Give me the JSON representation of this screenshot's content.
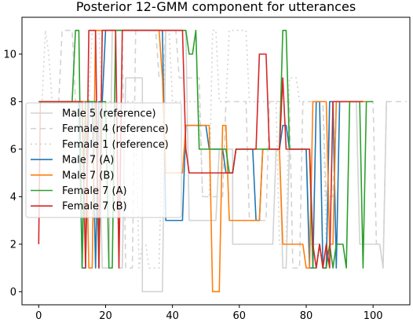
{
  "chart_data": {
    "type": "line",
    "title": "Posterior 12-GMM component for utterances",
    "xlabel": "",
    "ylabel": "",
    "xlim": [
      -5,
      111
    ],
    "ylim": [
      -0.55,
      11.55
    ],
    "x_ticks": [
      0,
      20,
      40,
      60,
      80,
      100
    ],
    "y_ticks": [
      0,
      2,
      4,
      6,
      8,
      10
    ],
    "grid": false,
    "legend_position": "center-left",
    "series": [
      {
        "name": "Male 5 (reference)",
        "color": "#d3d3d3",
        "dash": "solid",
        "points": [
          [
            0,
            8
          ],
          [
            12,
            8
          ],
          [
            13,
            1
          ],
          [
            14,
            1
          ],
          [
            15,
            8
          ],
          [
            18,
            8
          ],
          [
            19,
            1
          ],
          [
            21,
            1
          ],
          [
            22,
            11
          ],
          [
            23,
            11
          ],
          [
            24,
            1
          ],
          [
            25,
            1
          ],
          [
            26,
            9
          ],
          [
            31,
            9
          ],
          [
            31,
            0
          ],
          [
            37,
            0
          ],
          [
            38,
            11
          ],
          [
            44,
            11
          ],
          [
            45,
            3
          ],
          [
            53,
            3
          ],
          [
            54,
            6
          ],
          [
            58,
            6
          ],
          [
            58,
            2
          ],
          [
            70,
            2
          ],
          [
            71,
            6
          ],
          [
            72,
            6
          ],
          [
            73,
            1
          ],
          [
            74,
            1
          ],
          [
            75,
            6
          ],
          [
            80,
            6
          ],
          [
            81,
            2
          ],
          [
            84,
            2
          ],
          [
            85,
            1
          ],
          [
            86,
            1
          ],
          [
            87,
            8
          ],
          [
            95,
            8
          ],
          [
            96,
            2
          ],
          [
            102,
            2
          ],
          [
            103,
            1
          ],
          [
            104,
            8
          ],
          [
            105,
            8
          ]
        ]
      },
      {
        "name": "Female 4 (reference)",
        "color": "#d3d3d3",
        "dash": "7,5",
        "points": [
          [
            0,
            8
          ],
          [
            6,
            8
          ],
          [
            7,
            11
          ],
          [
            10,
            11
          ],
          [
            11,
            8
          ],
          [
            16,
            8
          ],
          [
            17,
            3
          ],
          [
            18,
            3
          ],
          [
            19,
            11
          ],
          [
            25,
            11
          ],
          [
            26,
            1
          ],
          [
            28,
            1
          ],
          [
            29,
            11
          ],
          [
            35,
            11
          ],
          [
            36,
            9
          ],
          [
            37,
            9
          ],
          [
            38,
            11
          ],
          [
            41,
            11
          ],
          [
            42,
            9
          ],
          [
            48,
            9
          ],
          [
            49,
            4
          ],
          [
            55,
            4
          ],
          [
            56,
            8
          ],
          [
            62,
            8
          ],
          [
            63,
            3
          ],
          [
            68,
            3
          ],
          [
            69,
            8
          ],
          [
            75,
            8
          ],
          [
            76,
            1
          ],
          [
            78,
            1
          ],
          [
            79,
            8
          ],
          [
            85,
            8
          ],
          [
            86,
            4
          ],
          [
            88,
            4
          ],
          [
            89,
            8
          ],
          [
            100,
            8
          ],
          [
            101,
            2
          ],
          [
            102,
            2
          ],
          [
            103,
            1
          ],
          [
            104,
            8
          ],
          [
            110,
            8
          ]
        ]
      },
      {
        "name": "Female 1 (reference)",
        "color": "#d3d3d3",
        "dash": "2,4",
        "points": [
          [
            0,
            8
          ],
          [
            1,
            8
          ],
          [
            2,
            11
          ],
          [
            3,
            10
          ],
          [
            4,
            8
          ],
          [
            15,
            8
          ],
          [
            16,
            11
          ],
          [
            18,
            11
          ],
          [
            19,
            8
          ],
          [
            23,
            8
          ],
          [
            24,
            1
          ],
          [
            25,
            1
          ],
          [
            26,
            8
          ],
          [
            29,
            8
          ],
          [
            30,
            1
          ],
          [
            31,
            2
          ],
          [
            32,
            2
          ],
          [
            33,
            1
          ],
          [
            36,
            1
          ],
          [
            37,
            7
          ],
          [
            38,
            11
          ],
          [
            39,
            11
          ],
          [
            40,
            8
          ],
          [
            48,
            8
          ],
          [
            49,
            4
          ],
          [
            51,
            4
          ],
          [
            52,
            11
          ],
          [
            53,
            11
          ],
          [
            54,
            8
          ],
          [
            56,
            8
          ],
          [
            57,
            11
          ],
          [
            62,
            11
          ],
          [
            63,
            8
          ],
          [
            71,
            8
          ],
          [
            72,
            2
          ],
          [
            74,
            2
          ],
          [
            75,
            9
          ],
          [
            77,
            9
          ],
          [
            78,
            8
          ],
          [
            85,
            8
          ],
          [
            86,
            2
          ],
          [
            87,
            1
          ],
          [
            88,
            8
          ],
          [
            95,
            8
          ]
        ]
      },
      {
        "name": "Male 7 (A)",
        "color": "#1f77b4",
        "dash": "solid",
        "points": [
          [
            0,
            8
          ],
          [
            12,
            8
          ],
          [
            13,
            1
          ],
          [
            14,
            1
          ],
          [
            15,
            8
          ],
          [
            16,
            8
          ],
          [
            17,
            1
          ],
          [
            18,
            8
          ],
          [
            19,
            8
          ],
          [
            20,
            11
          ],
          [
            37,
            11
          ],
          [
            38,
            3
          ],
          [
            43,
            3
          ],
          [
            44,
            7
          ],
          [
            50,
            7
          ],
          [
            51,
            6
          ],
          [
            55,
            6
          ],
          [
            56,
            5
          ],
          [
            58,
            5
          ],
          [
            59,
            6
          ],
          [
            64,
            6
          ],
          [
            65,
            3
          ],
          [
            66,
            3
          ],
          [
            67,
            6
          ],
          [
            72,
            6
          ],
          [
            73,
            7
          ],
          [
            74,
            7
          ],
          [
            75,
            6
          ],
          [
            80,
            6
          ],
          [
            81,
            1
          ],
          [
            82,
            1
          ],
          [
            83,
            8
          ],
          [
            84,
            8
          ],
          [
            85,
            1
          ],
          [
            86,
            1
          ],
          [
            87,
            8
          ],
          [
            88,
            8
          ],
          [
            89,
            1
          ],
          [
            90,
            8
          ],
          [
            91,
            8
          ]
        ]
      },
      {
        "name": "Male 7 (B)",
        "color": "#ff7f0e",
        "dash": "solid",
        "points": [
          [
            0,
            8
          ],
          [
            14,
            8
          ],
          [
            15,
            1
          ],
          [
            16,
            1
          ],
          [
            17,
            11
          ],
          [
            36,
            11
          ],
          [
            37,
            9
          ],
          [
            38,
            5
          ],
          [
            43,
            5
          ],
          [
            44,
            7
          ],
          [
            51,
            7
          ],
          [
            52,
            0
          ],
          [
            54,
            0
          ],
          [
            55,
            7
          ],
          [
            56,
            7
          ],
          [
            57,
            3
          ],
          [
            66,
            3
          ],
          [
            67,
            6
          ],
          [
            72,
            6
          ],
          [
            73,
            2
          ],
          [
            79,
            2
          ],
          [
            80,
            1
          ],
          [
            81,
            1
          ],
          [
            82,
            8
          ],
          [
            86,
            8
          ],
          [
            87,
            2
          ],
          [
            88,
            2
          ],
          [
            89,
            8
          ],
          [
            98,
            8
          ]
        ]
      },
      {
        "name": "Female 7 (A)",
        "color": "#2ca02c",
        "dash": "solid",
        "points": [
          [
            0,
            8
          ],
          [
            10,
            8
          ],
          [
            11,
            11
          ],
          [
            12,
            11
          ],
          [
            13,
            1
          ],
          [
            14,
            8
          ],
          [
            17,
            8
          ],
          [
            18,
            1
          ],
          [
            19,
            8
          ],
          [
            20,
            8
          ],
          [
            21,
            1
          ],
          [
            22,
            1
          ],
          [
            23,
            11
          ],
          [
            44,
            11
          ],
          [
            45,
            10
          ],
          [
            46,
            10
          ],
          [
            47,
            11
          ],
          [
            48,
            6
          ],
          [
            56,
            6
          ],
          [
            57,
            5
          ],
          [
            58,
            5
          ],
          [
            59,
            6
          ],
          [
            72,
            6
          ],
          [
            73,
            11
          ],
          [
            74,
            11
          ],
          [
            75,
            6
          ],
          [
            81,
            6
          ],
          [
            82,
            1
          ],
          [
            83,
            1
          ],
          [
            84,
            2
          ],
          [
            85,
            1
          ],
          [
            86,
            1
          ],
          [
            87,
            2
          ],
          [
            88,
            1
          ],
          [
            89,
            2
          ],
          [
            91,
            2
          ],
          [
            92,
            1
          ],
          [
            93,
            8
          ],
          [
            96,
            8
          ],
          [
            97,
            1
          ],
          [
            98,
            8
          ],
          [
            100,
            8
          ]
        ]
      },
      {
        "name": "Female 7 (B)",
        "color": "#d62728",
        "dash": "solid",
        "points": [
          [
            0,
            2
          ],
          [
            0.5,
            8
          ],
          [
            13,
            8
          ],
          [
            14,
            1
          ],
          [
            15,
            11
          ],
          [
            17,
            11
          ],
          [
            18,
            1
          ],
          [
            19,
            11
          ],
          [
            23,
            11
          ],
          [
            24,
            1
          ],
          [
            25,
            11
          ],
          [
            43,
            11
          ],
          [
            44,
            6
          ],
          [
            45,
            5
          ],
          [
            58,
            5
          ],
          [
            59,
            6
          ],
          [
            65,
            6
          ],
          [
            66,
            10
          ],
          [
            68,
            10
          ],
          [
            69,
            6
          ],
          [
            72,
            6
          ],
          [
            73,
            9
          ],
          [
            74,
            6
          ],
          [
            81,
            6
          ],
          [
            82,
            2
          ],
          [
            83,
            1
          ],
          [
            84,
            2
          ],
          [
            85,
            1
          ],
          [
            86,
            2
          ],
          [
            87,
            1
          ],
          [
            88,
            8
          ],
          [
            97,
            8
          ]
        ]
      }
    ]
  }
}
